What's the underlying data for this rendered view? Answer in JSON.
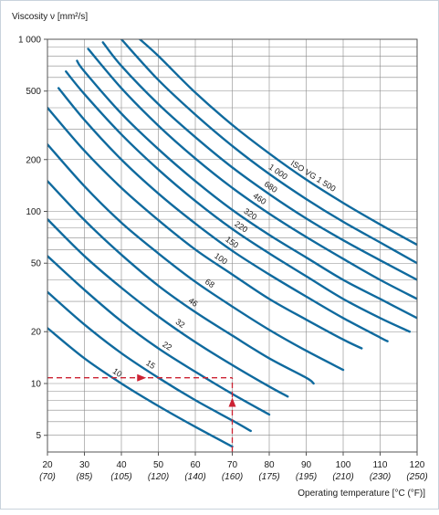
{
  "chart_data": {
    "type": "line",
    "title": "",
    "ylabel": "Viscosity ν [mm²/s]",
    "xlabel": "Operating temperature [°C (°F)]",
    "y_scale": "log",
    "xlim": [
      20,
      120
    ],
    "ylim": [
      4,
      1000
    ],
    "grid": true,
    "x_ticks": [
      20,
      30,
      40,
      50,
      60,
      70,
      80,
      90,
      100,
      110,
      120
    ],
    "x_tick_labels": [
      "20",
      "30",
      "40",
      "50",
      "60",
      "70",
      "80",
      "90",
      "100",
      "110",
      "120"
    ],
    "x_tick_sublabels": [
      "(70)",
      "(85)",
      "(105)",
      "(120)",
      "(140)",
      "(160)",
      "(175)",
      "(195)",
      "(210)",
      "(230)",
      "(250)"
    ],
    "y_ticks": [
      5,
      10,
      20,
      50,
      100,
      200,
      500,
      1000
    ],
    "y_tick_labels": [
      "5",
      "10",
      "20",
      "50",
      "100",
      "200",
      "500",
      "1 000"
    ],
    "series": [
      {
        "name": "10",
        "x": [
          20,
          30,
          40,
          50,
          60,
          70
        ],
        "y": [
          21,
          14,
          10,
          7.4,
          5.6,
          4.3
        ]
      },
      {
        "name": "15",
        "x": [
          20,
          30,
          40,
          50,
          60,
          70,
          75
        ],
        "y": [
          34,
          22,
          15,
          10.8,
          8.0,
          6.1,
          5.3
        ]
      },
      {
        "name": "22",
        "x": [
          20,
          30,
          40,
          50,
          60,
          70,
          80
        ],
        "y": [
          55,
          35,
          23,
          16,
          11.7,
          8.7,
          6.6
        ]
      },
      {
        "name": "32",
        "x": [
          20,
          30,
          40,
          50,
          60,
          70,
          80,
          85
        ],
        "y": [
          90,
          55,
          36,
          24.5,
          17.4,
          12.8,
          9.6,
          8.4
        ]
      },
      {
        "name": "46",
        "x": [
          20,
          30,
          40,
          50,
          60,
          70,
          80,
          90,
          92
        ],
        "y": [
          150,
          89,
          56,
          37,
          26,
          19,
          14,
          10.8,
          10
        ]
      },
      {
        "name": "68",
        "x": [
          20,
          30,
          40,
          50,
          60,
          70,
          80,
          90,
          100
        ],
        "y": [
          245,
          140,
          86,
          57,
          39,
          28,
          20.5,
          15.5,
          12
        ]
      },
      {
        "name": "100",
        "x": [
          20,
          30,
          40,
          50,
          60,
          70,
          80,
          90,
          100,
          105
        ],
        "y": [
          400,
          225,
          137,
          89,
          60,
          43,
          31,
          23.5,
          18,
          16
        ]
      },
      {
        "name": "150",
        "x": [
          23,
          30,
          40,
          50,
          60,
          70,
          80,
          90,
          100,
          110,
          112
        ],
        "y": [
          520,
          340,
          200,
          127,
          85,
          59,
          43,
          32,
          24,
          18.5,
          17.6
        ]
      },
      {
        "name": "220",
        "x": [
          25,
          30,
          40,
          50,
          60,
          70,
          80,
          90,
          100,
          110,
          118
        ],
        "y": [
          650,
          480,
          280,
          175,
          115,
          79,
          57,
          42,
          31,
          24,
          20
        ]
      },
      {
        "name": "320",
        "x": [
          28,
          30,
          40,
          50,
          60,
          70,
          80,
          90,
          100,
          110,
          120
        ],
        "y": [
          750,
          650,
          370,
          230,
          150,
          102,
          73,
          54,
          40,
          31,
          24
        ]
      },
      {
        "name": "460",
        "x": [
          31,
          40,
          50,
          60,
          70,
          80,
          90,
          100,
          110,
          120
        ],
        "y": [
          880,
          520,
          315,
          203,
          137,
          97,
          71,
          53,
          40,
          31
        ]
      },
      {
        "name": "680",
        "x": [
          35,
          40,
          50,
          60,
          70,
          80,
          90,
          100,
          110,
          120
        ],
        "y": [
          960,
          700,
          420,
          270,
          180,
          126,
          91,
          68,
          52,
          40
        ]
      },
      {
        "name": "1 000",
        "x": [
          40,
          50,
          60,
          70,
          80,
          90,
          100,
          110,
          120
        ],
        "y": [
          1000,
          580,
          365,
          240,
          165,
          118,
          87,
          66,
          50
        ]
      },
      {
        "name": "ISO VG 1 500",
        "x": [
          45,
          50,
          60,
          70,
          80,
          90,
          100,
          110,
          120
        ],
        "y": [
          1000,
          800,
          490,
          318,
          217,
          153,
          112,
          84,
          64
        ]
      }
    ],
    "annotation": {
      "style": "dashed-arrows",
      "color": "#cc2233",
      "x_temperature": 70,
      "y_viscosity": 10.8
    },
    "colors": {
      "curve": "#0f6a9e",
      "grid": "#8a8a8a",
      "axis": "#555555",
      "annotation": "#cc2233"
    }
  }
}
